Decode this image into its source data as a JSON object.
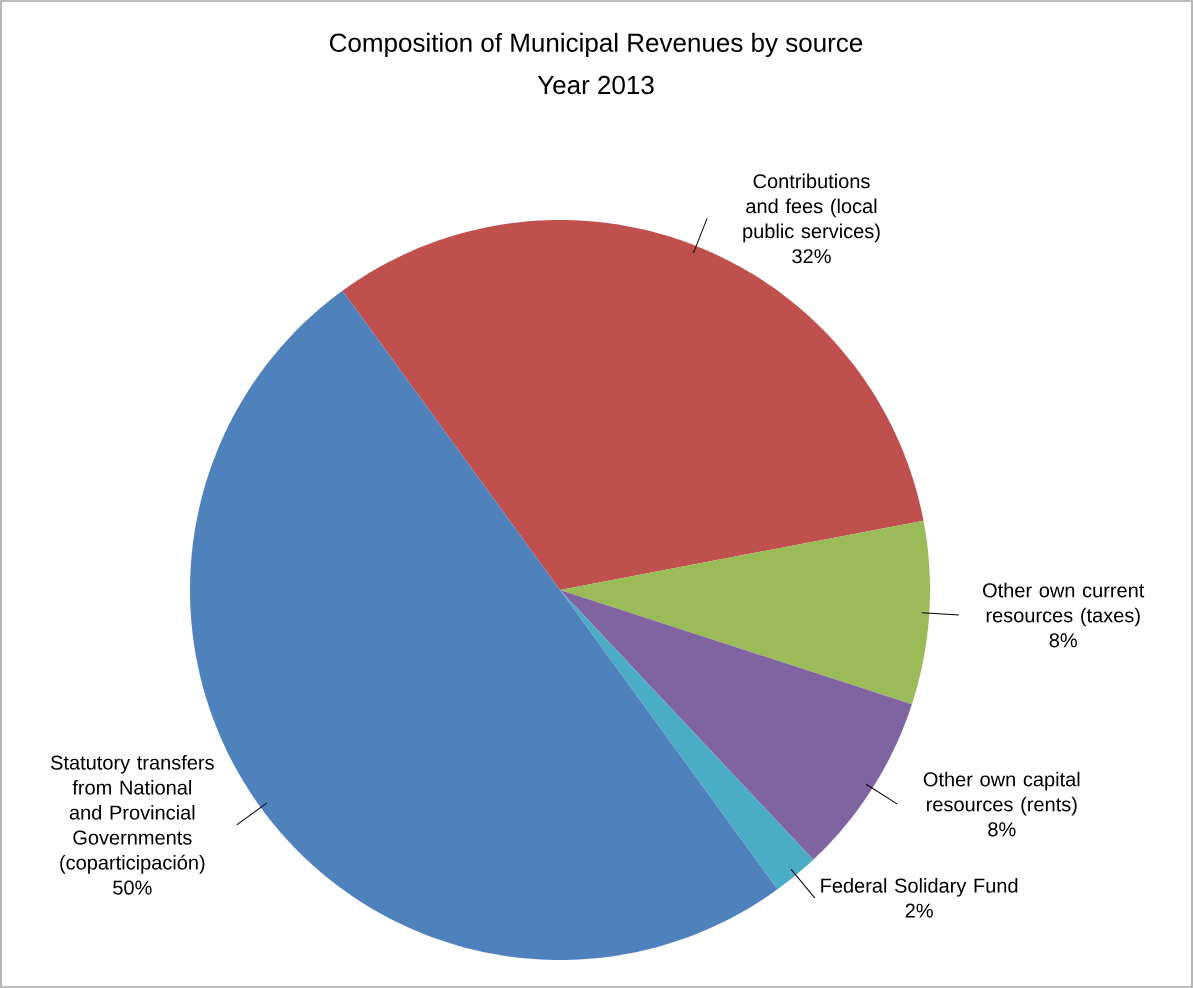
{
  "chart_data": {
    "type": "pie",
    "title": "Composition of Municipal Revenues by source",
    "subtitle": "Year 2013",
    "categories": [
      "Contributions and fees (local public services)",
      "Other own current resources (taxes)",
      "Other own capital resources (rents)",
      "Federal Solidary Fund",
      "Statutory transfers from National and Provincial Governments (coparticipación)"
    ],
    "values": [
      32,
      8,
      8,
      2,
      50
    ],
    "colors": [
      "#c0504d",
      "#9bbb59",
      "#8064a2",
      "#4bacc6",
      "#4f81bd"
    ],
    "value_labels": [
      "32%",
      "8%",
      "8%",
      "2%",
      "50%"
    ]
  }
}
